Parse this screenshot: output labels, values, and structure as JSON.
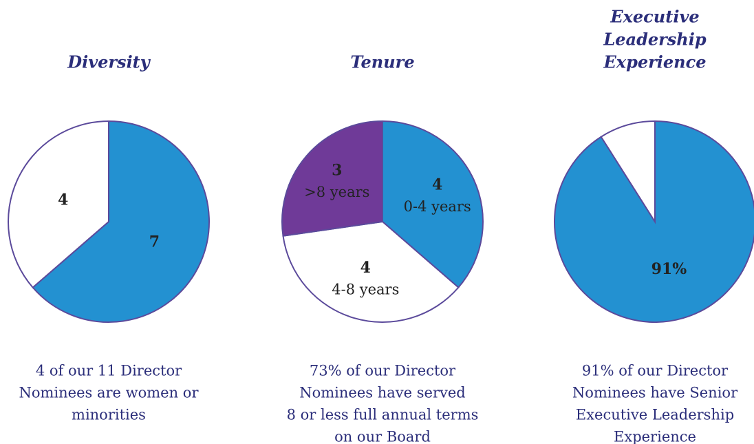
{
  "chart_data": [
    {
      "type": "pie",
      "title": [
        "Diversity"
      ],
      "values": [
        7,
        4
      ],
      "colors": [
        "#2391d1",
        "#ffffff"
      ],
      "caption": [
        "4 of our 11 Director",
        "Nominees are women or",
        "minorities"
      ]
    },
    {
      "type": "pie",
      "title": [
        "Tenure"
      ],
      "categories": [
        "0-4 years",
        "4-8 years",
        ">8 years"
      ],
      "values": [
        4,
        4,
        3
      ],
      "colors": [
        "#2391d1",
        "#ffffff",
        "#6f3a98"
      ],
      "caption": [
        "73% of our Director",
        "Nominees have served",
        "8 or less full annual terms",
        "on our Board"
      ]
    },
    {
      "type": "pie",
      "title": [
        "Executive",
        "Leadership",
        "Experience"
      ],
      "values": [
        91,
        9
      ],
      "value_labels": [
        "91%",
        null
      ],
      "colors": [
        "#2391d1",
        "#ffffff"
      ],
      "caption": [
        "91% of our Director",
        "Nominees have Senior",
        "Executive Leadership",
        "Experience"
      ]
    }
  ]
}
